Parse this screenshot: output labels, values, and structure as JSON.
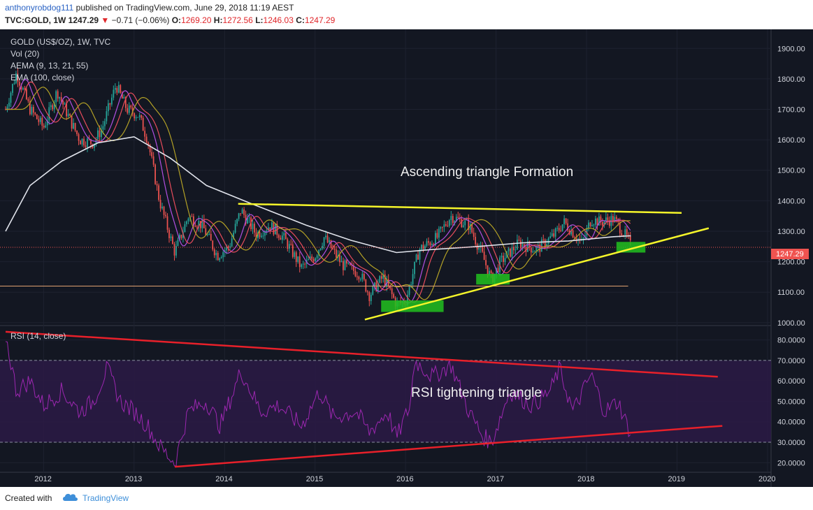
{
  "header": {
    "author": "anthonyrobdog111",
    "published_text": "published on TradingView.com, June 29, 2018 11:19 AEST",
    "symbol": "TVC:GOLD, 1W",
    "last": "1247.29",
    "change_arrow": "▼",
    "change": "−0.71 (−0.06%)",
    "open_label": "O:",
    "open": "1269.20",
    "high_label": "H:",
    "high": "1272.56",
    "low_label": "L:",
    "low": "1246.03",
    "close_label": "C:",
    "close": "1247.29"
  },
  "legend": {
    "title": "GOLD (US$/OZ), 1W, TVC",
    "vol": "Vol (20)",
    "aema": "AEMA (9, 13, 21, 55)",
    "ema": "EMA (100, close)",
    "rsi": "RSI (14, close)"
  },
  "annotations": {
    "price_pattern": "Ascending triangle Formation",
    "rsi_pattern": "RSI tightening triangle"
  },
  "price_tag": "1247.29",
  "footer": {
    "created": "Created with",
    "brand": "TradingView"
  },
  "colors": {
    "background": "#131722",
    "up": "#26a69a",
    "down": "#ef5350",
    "ema100": "#e0e3eb",
    "ema55": "#b3a126",
    "ema21": "#e74c5c",
    "ema9": "#b14fe0",
    "trendline": "#f5f52a",
    "rsi": "#9c27b0",
    "rsi_band": "#2c1a45",
    "rsi_trend": "#e8202a",
    "support_box": "#22c11f",
    "last_price": "#ef5350"
  },
  "chart_data": [
    {
      "type": "candlestick",
      "title": "GOLD (US$/OZ), 1W, TVC",
      "x_ticks": [
        "2012",
        "2013",
        "2014",
        "2015",
        "2016",
        "2017",
        "2018",
        "2019",
        "2020"
      ],
      "y_ticks": [
        "1000.00",
        "1100.00",
        "1200.00",
        "1300.00",
        "1400.00",
        "1500.00",
        "1600.00",
        "1700.00",
        "1800.00",
        "1900.00"
      ],
      "ylim": [
        995,
        1935
      ],
      "last_price": 1247.29,
      "horizontal_level": 1120,
      "close_path": [
        [
          2011.58,
          1700
        ],
        [
          2011.7,
          1820
        ],
        [
          2011.85,
          1700
        ],
        [
          2012.0,
          1640
        ],
        [
          2012.15,
          1760
        ],
        [
          2012.3,
          1660
        ],
        [
          2012.4,
          1600
        ],
        [
          2012.55,
          1590
        ],
        [
          2012.65,
          1640
        ],
        [
          2012.8,
          1780
        ],
        [
          2012.92,
          1700
        ],
        [
          2013.05,
          1680
        ],
        [
          2013.15,
          1600
        ],
        [
          2013.28,
          1400
        ],
        [
          2013.45,
          1230
        ],
        [
          2013.6,
          1350
        ],
        [
          2013.75,
          1320
        ],
        [
          2013.92,
          1220
        ],
        [
          2014.05,
          1250
        ],
        [
          2014.18,
          1370
        ],
        [
          2014.35,
          1290
        ],
        [
          2014.5,
          1320
        ],
        [
          2014.65,
          1280
        ],
        [
          2014.85,
          1180
        ],
        [
          2015.0,
          1220
        ],
        [
          2015.1,
          1280
        ],
        [
          2015.3,
          1190
        ],
        [
          2015.5,
          1160
        ],
        [
          2015.6,
          1090
        ],
        [
          2015.75,
          1150
        ],
        [
          2015.9,
          1060
        ],
        [
          2016.0,
          1070
        ],
        [
          2016.15,
          1240
        ],
        [
          2016.35,
          1280
        ],
        [
          2016.5,
          1350
        ],
        [
          2016.7,
          1320
        ],
        [
          2016.85,
          1220
        ],
        [
          2016.95,
          1140
        ],
        [
          2017.05,
          1200
        ],
        [
          2017.25,
          1260
        ],
        [
          2017.45,
          1240
        ],
        [
          2017.65,
          1290
        ],
        [
          2017.75,
          1330
        ],
        [
          2017.95,
          1260
        ],
        [
          2018.05,
          1340
        ],
        [
          2018.15,
          1330
        ],
        [
          2018.3,
          1340
        ],
        [
          2018.4,
          1300
        ],
        [
          2018.47,
          1265
        ],
        [
          2018.49,
          1247.29
        ]
      ],
      "ema100_path": [
        [
          2011.58,
          1300
        ],
        [
          2011.85,
          1450
        ],
        [
          2012.2,
          1530
        ],
        [
          2012.6,
          1590
        ],
        [
          2013.0,
          1610
        ],
        [
          2013.4,
          1540
        ],
        [
          2013.8,
          1450
        ],
        [
          2014.3,
          1390
        ],
        [
          2014.9,
          1320
        ],
        [
          2015.4,
          1270
        ],
        [
          2015.9,
          1230
        ],
        [
          2016.3,
          1240
        ],
        [
          2016.8,
          1250
        ],
        [
          2017.3,
          1262
        ],
        [
          2017.8,
          1268
        ],
        [
          2018.3,
          1282
        ],
        [
          2018.49,
          1285
        ]
      ],
      "trendlines": [
        {
          "name": "resistance",
          "from": [
            2014.15,
            1390
          ],
          "to": [
            2019.05,
            1360
          ]
        },
        {
          "name": "support",
          "from": [
            2015.55,
            1010
          ],
          "to": [
            2019.35,
            1310
          ]
        }
      ],
      "support_zones": [
        {
          "x": [
            2015.73,
            2016.42
          ],
          "y": [
            1035,
            1073
          ]
        },
        {
          "x": [
            2016.78,
            2017.15
          ],
          "y": [
            1125,
            1160
          ]
        },
        {
          "x": [
            2018.33,
            2018.65
          ],
          "y": [
            1230,
            1265
          ]
        }
      ],
      "annotation": "Ascending triangle Formation"
    },
    {
      "type": "line",
      "title": "RSI (14, close)",
      "y_ticks": [
        "20.0000",
        "30.0000",
        "40.0000",
        "50.0000",
        "60.0000",
        "70.0000",
        "80.0000"
      ],
      "ylim": [
        16,
        86
      ],
      "band": [
        30,
        70
      ],
      "rsi_path": [
        [
          2011.58,
          82
        ],
        [
          2011.7,
          55
        ],
        [
          2011.85,
          60
        ],
        [
          2012.0,
          48
        ],
        [
          2012.2,
          55
        ],
        [
          2012.4,
          45
        ],
        [
          2012.55,
          50
        ],
        [
          2012.7,
          66
        ],
        [
          2012.85,
          50
        ],
        [
          2013.0,
          45
        ],
        [
          2013.15,
          38
        ],
        [
          2013.28,
          28
        ],
        [
          2013.45,
          20
        ],
        [
          2013.6,
          45
        ],
        [
          2013.8,
          50
        ],
        [
          2013.95,
          38
        ],
        [
          2014.1,
          55
        ],
        [
          2014.18,
          65
        ],
        [
          2014.4,
          45
        ],
        [
          2014.6,
          48
        ],
        [
          2014.85,
          38
        ],
        [
          2015.05,
          55
        ],
        [
          2015.2,
          42
        ],
        [
          2015.45,
          45
        ],
        [
          2015.6,
          35
        ],
        [
          2015.8,
          45
        ],
        [
          2015.9,
          32
        ],
        [
          2016.05,
          48
        ],
        [
          2016.1,
          70
        ],
        [
          2016.3,
          62
        ],
        [
          2016.5,
          68
        ],
        [
          2016.7,
          45
        ],
        [
          2016.85,
          33
        ],
        [
          2016.95,
          30
        ],
        [
          2017.15,
          55
        ],
        [
          2017.4,
          48
        ],
        [
          2017.6,
          55
        ],
        [
          2017.7,
          66
        ],
        [
          2017.85,
          45
        ],
        [
          2018.05,
          63
        ],
        [
          2018.2,
          45
        ],
        [
          2018.35,
          50
        ],
        [
          2018.45,
          38
        ],
        [
          2018.49,
          35
        ]
      ],
      "trendlines": [
        {
          "name": "upper",
          "from": [
            2011.58,
            84
          ],
          "to": [
            2019.45,
            62
          ]
        },
        {
          "name": "lower",
          "from": [
            2013.45,
            18
          ],
          "to": [
            2019.5,
            38
          ]
        }
      ],
      "annotation": "RSI tightening triangle"
    }
  ]
}
